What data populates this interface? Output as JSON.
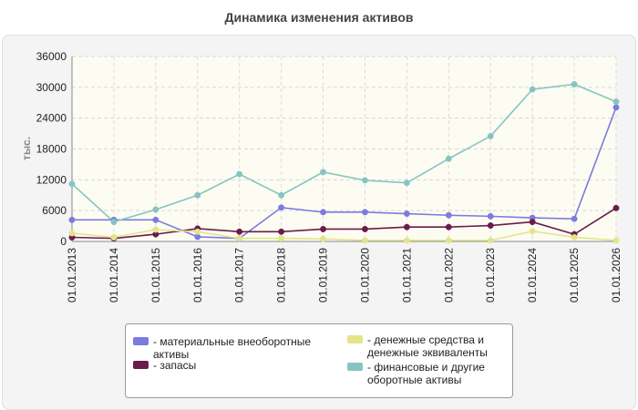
{
  "chart_data": {
    "type": "line",
    "title": "Динамика изменения активов",
    "ylabel": "тыс.",
    "xlabel": "",
    "ylim": [
      0,
      36000
    ],
    "yticks": [
      0,
      6000,
      12000,
      18000,
      24000,
      30000,
      36000
    ],
    "grid": true,
    "legend_position": "bottom",
    "categories": [
      "01.01.2013",
      "01.01.2014",
      "01.01.2015",
      "01.01.2016",
      "01.01.2017",
      "01.01.2018",
      "01.01.2019",
      "01.01.2020",
      "01.01.2021",
      "01.01.2022",
      "01.01.2023",
      "01.01.2024",
      "01.01.2025",
      "01.01.2026"
    ],
    "series": [
      {
        "name": "- материальные внеоборотные активы",
        "color": "#7b7be0",
        "values": [
          4200,
          4200,
          4200,
          900,
          600,
          6600,
          5700,
          5700,
          5400,
          5100,
          4900,
          4600,
          4400,
          26100
        ]
      },
      {
        "name": "- запасы",
        "color": "#6b1b4b",
        "values": [
          800,
          600,
          1400,
          2500,
          1900,
          1900,
          2400,
          2400,
          2800,
          2800,
          3100,
          3800,
          1400,
          6500
        ]
      },
      {
        "name": "- денежные средства и денежные эквиваленты",
        "color": "#e4e48c",
        "values": [
          1600,
          800,
          2300,
          1900,
          600,
          600,
          500,
          200,
          200,
          200,
          200,
          2000,
          800,
          200
        ]
      },
      {
        "name": "- финансовые и другие оборотные активы",
        "color": "#86c4c2",
        "values": [
          11200,
          3800,
          6200,
          9000,
          13100,
          9000,
          13500,
          11900,
          11400,
          16100,
          20500,
          29600,
          30600,
          27200
        ]
      }
    ]
  }
}
